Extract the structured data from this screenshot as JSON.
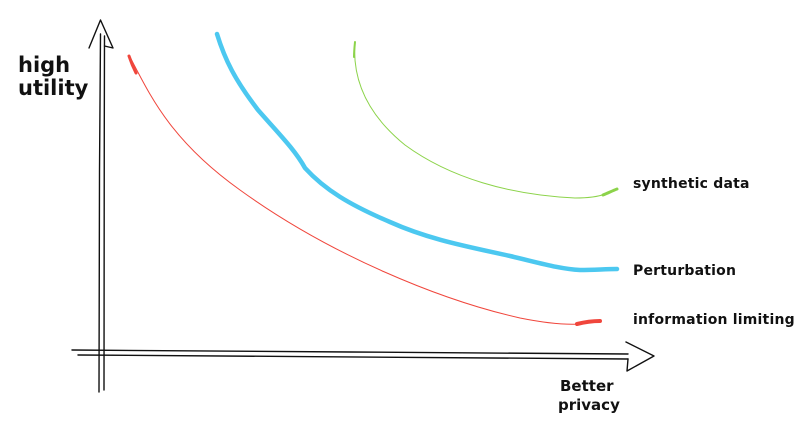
{
  "axes": {
    "y_label_line1": "high",
    "y_label_line2": "utility",
    "x_label_line1": "Better",
    "x_label_line2": "privacy"
  },
  "curves": [
    {
      "label": "synthetic data",
      "color": "#8cd34a"
    },
    {
      "label": "Perturbation",
      "color": "#4cc8f0"
    },
    {
      "label": "information limiting",
      "color": "#f0463c"
    }
  ],
  "colors": {
    "ink": "#111111"
  }
}
